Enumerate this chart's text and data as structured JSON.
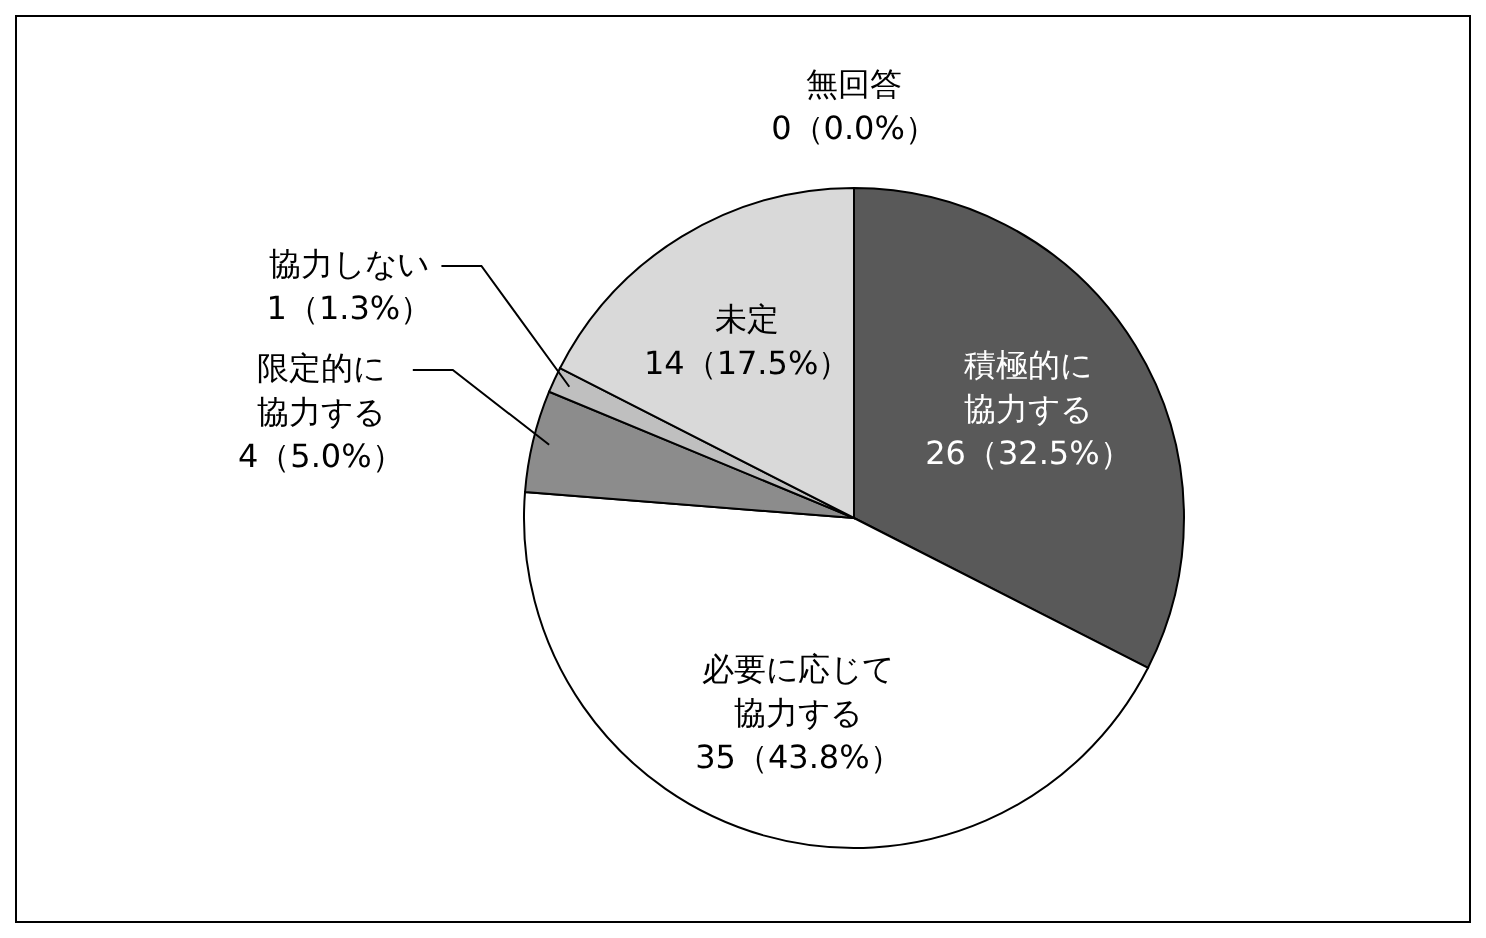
{
  "chart_data": {
    "type": "pie",
    "categories": [
      "積極的に協力する",
      "必要に応じて協力する",
      "限定的に協力する",
      "協力しない",
      "未定",
      "無回答"
    ],
    "values": [
      26,
      35,
      4,
      1,
      14,
      0
    ],
    "value_labels": [
      "26（32.5%）",
      "35（43.8%）",
      "4（5.0%）",
      "1（1.3%）",
      "14（17.5%）",
      "0（0.0%）"
    ],
    "colors": [
      "#595959",
      "#ffffff",
      "#8c8c8c",
      "#bfbfbf",
      "#d9d9d9",
      "#ffffff"
    ]
  }
}
